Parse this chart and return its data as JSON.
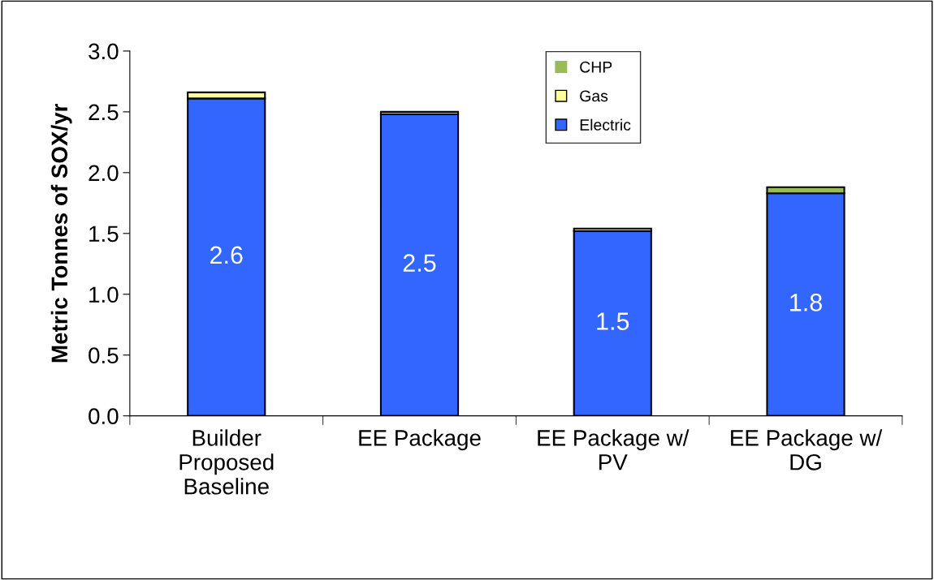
{
  "chart_data": {
    "type": "bar",
    "stacked": true,
    "ylabel": "Metric Tonnes of SOX/yr",
    "categories": [
      "Builder\nProposed\nBaseline",
      "EE Package",
      "EE Package w/\nPV",
      "EE Package w/\nDG"
    ],
    "series": [
      {
        "name": "Electric",
        "color": "#3366ff",
        "values": [
          2.61,
          2.48,
          1.52,
          1.83
        ],
        "value_labels": [
          "2.6",
          "2.5",
          "1.5",
          "1.8"
        ]
      },
      {
        "name": "Gas",
        "color": "#ffff99",
        "values": [
          0.05,
          0.02,
          0.02,
          0.0
        ]
      },
      {
        "name": "CHP",
        "color": "#9bbb59",
        "values": [
          0.0,
          0.0,
          0.0,
          0.05
        ]
      }
    ],
    "ylim": [
      0,
      3.0
    ],
    "yticks": [
      "0.0",
      "0.5",
      "1.0",
      "1.5",
      "2.0",
      "2.5",
      "3.0"
    ],
    "grid": false,
    "legend": "top"
  }
}
